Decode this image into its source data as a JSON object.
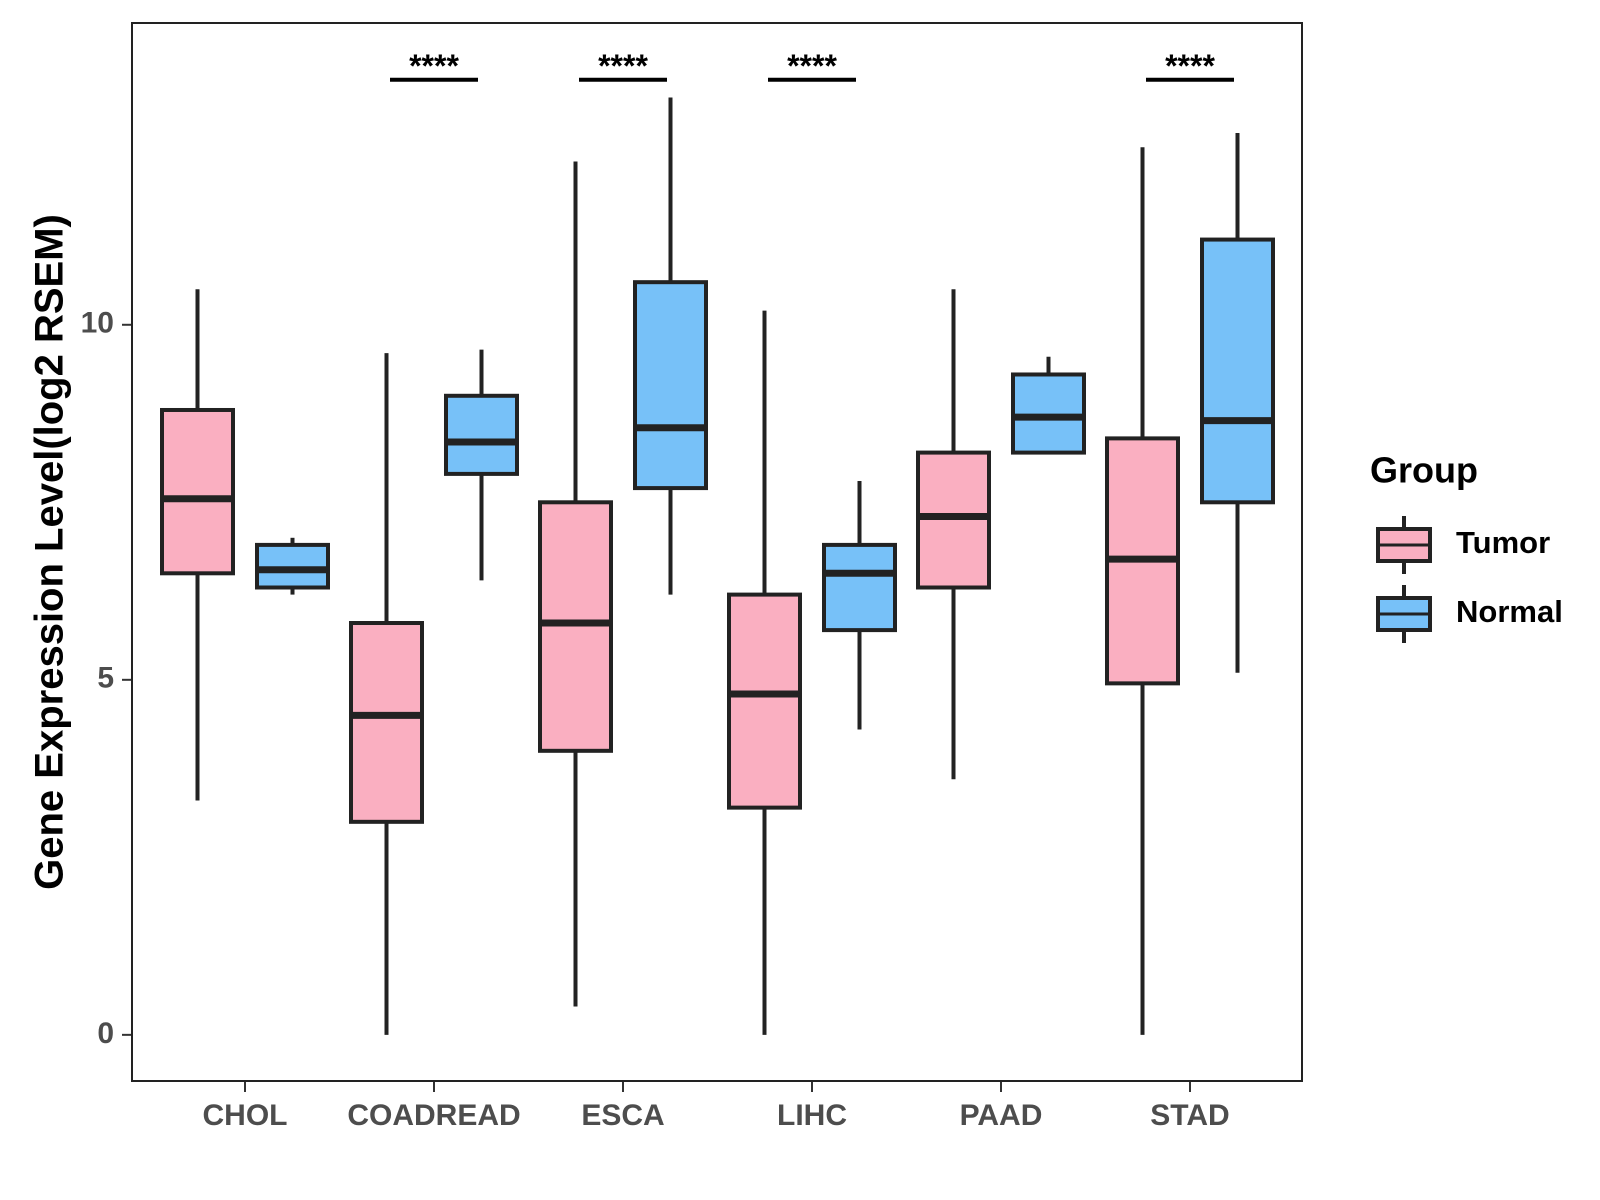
{
  "chart_data": {
    "type": "box",
    "title": "",
    "xlabel": "",
    "ylabel": "Gene Expression Level(log2 RSEM)",
    "ylim": [
      -0.65,
      14.25
    ],
    "y_ticks": [
      0,
      5,
      10
    ],
    "y_tick_labels": [
      "0",
      "5",
      "10"
    ],
    "categories": [
      "CHOL",
      "COADREAD",
      "ESCA",
      "LIHC",
      "PAAD",
      "STAD"
    ],
    "legend": {
      "title": "Group",
      "position": "right",
      "items": [
        {
          "name": "Tumor",
          "color": "#FAAFC1"
        },
        {
          "name": "Normal",
          "color": "#77C1F8"
        }
      ]
    },
    "series": [
      {
        "name": "Tumor",
        "color": "#FAAFC1",
        "boxes": [
          {
            "category": "CHOL",
            "min": 3.3,
            "q1": 6.5,
            "median": 7.55,
            "q3": 8.8,
            "max": 10.5
          },
          {
            "category": "COADREAD",
            "min": 0.0,
            "q1": 3.0,
            "median": 4.5,
            "q3": 5.8,
            "max": 9.6
          },
          {
            "category": "ESCA",
            "min": 0.4,
            "q1": 4.0,
            "median": 5.8,
            "q3": 7.5,
            "max": 12.3
          },
          {
            "category": "LIHC",
            "min": 0.0,
            "q1": 3.2,
            "median": 4.8,
            "q3": 6.2,
            "max": 10.2
          },
          {
            "category": "PAAD",
            "min": 3.6,
            "q1": 6.3,
            "median": 7.3,
            "q3": 8.2,
            "max": 10.5
          },
          {
            "category": "STAD",
            "min": 0.0,
            "q1": 4.95,
            "median": 6.7,
            "q3": 8.4,
            "max": 12.5
          }
        ]
      },
      {
        "name": "Normal",
        "color": "#77C1F8",
        "boxes": [
          {
            "category": "CHOL",
            "min": 6.2,
            "q1": 6.3,
            "median": 6.55,
            "q3": 6.9,
            "max": 7.0
          },
          {
            "category": "COADREAD",
            "min": 6.4,
            "q1": 7.9,
            "median": 8.35,
            "q3": 9.0,
            "max": 9.65
          },
          {
            "category": "ESCA",
            "min": 6.2,
            "q1": 7.7,
            "median": 8.55,
            "q3": 10.6,
            "max": 13.2
          },
          {
            "category": "LIHC",
            "min": 4.3,
            "q1": 5.7,
            "median": 6.5,
            "q3": 6.9,
            "max": 7.8
          },
          {
            "category": "PAAD",
            "min": 8.2,
            "q1": 8.2,
            "median": 8.7,
            "q3": 9.3,
            "max": 9.55
          },
          {
            "category": "STAD",
            "min": 5.1,
            "q1": 7.5,
            "median": 8.65,
            "q3": 11.2,
            "max": 12.7
          }
        ]
      }
    ],
    "significance": [
      {
        "category": "COADREAD",
        "label": "****"
      },
      {
        "category": "ESCA",
        "label": "****"
      },
      {
        "category": "LIHC",
        "label": "****"
      },
      {
        "category": "STAD",
        "label": "****"
      }
    ],
    "significance_level": 13.45
  }
}
